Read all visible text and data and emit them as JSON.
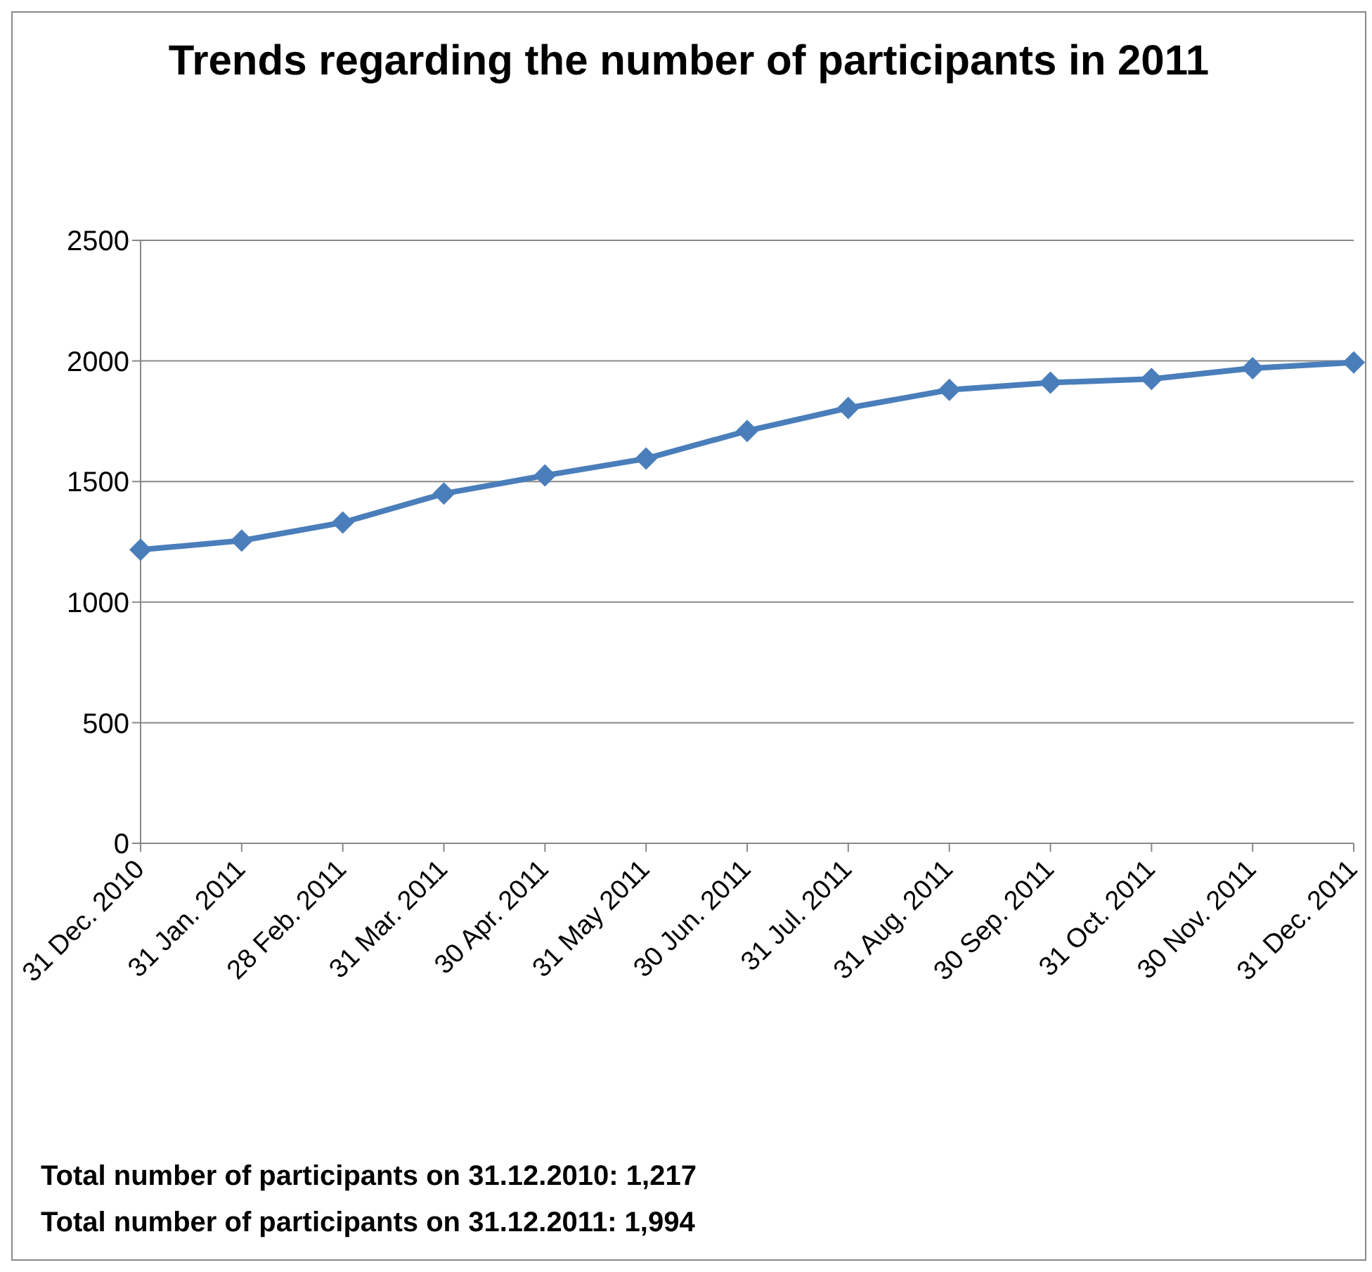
{
  "chart_data": {
    "type": "line",
    "title": "Trends regarding the number of participants in 2011",
    "categories": [
      "31 Dec. 2010",
      "31 Jan. 2011",
      "28 Feb. 2011",
      "31 Mar. 2011",
      "30 Apr. 2011",
      "31 May 2011",
      "30 Jun. 2011",
      "31 Jul. 2011",
      "31 Aug. 2011",
      "30 Sep. 2011",
      "31 Oct. 2011",
      "30 Nov. 2011",
      "31 Dec. 2011"
    ],
    "series": [
      {
        "color": "#4a7ebb",
        "values": [
          1217,
          1255,
          1330,
          1450,
          1525,
          1595,
          1710,
          1805,
          1880,
          1910,
          1925,
          1970,
          1994
        ]
      }
    ],
    "ylim": [
      0,
      2500
    ],
    "yticks": [
      0,
      500,
      1000,
      1500,
      2000,
      2500
    ],
    "grid": "y",
    "marker": "diamond",
    "line_style": "solid",
    "legend": false,
    "annotations": [
      "Total number of participants on 31.12.2010: 1,217",
      "Total number of participants on 31.12.2011: 1,994"
    ]
  }
}
